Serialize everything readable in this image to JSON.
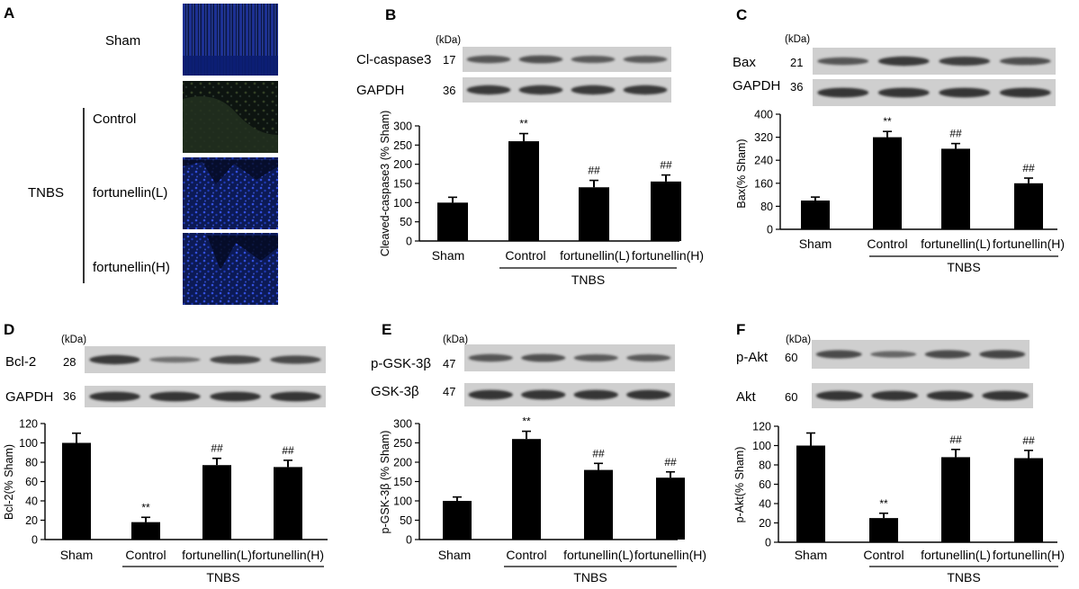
{
  "panel_a": {
    "letter": "A",
    "rows": [
      {
        "label": "Sham",
        "stain": "blue"
      },
      {
        "label": "Control",
        "stain": "dark-green"
      },
      {
        "label": "fortunellin(L)",
        "stain": "blue"
      },
      {
        "label": "fortunellin(H)",
        "stain": "blue"
      }
    ],
    "group_label": "TNBS"
  },
  "colors": {
    "bar": "#000000",
    "blot_bg": "#cfcfcf",
    "band": "#1e1e1e",
    "dapi": "#1b3cff"
  },
  "chart_data": [
    {
      "id": "B",
      "type": "bar",
      "blots": [
        {
          "protein": "Cl-caspase3",
          "kda": "17",
          "band_intensity": [
            0.55,
            0.6,
            0.5,
            0.5
          ]
        },
        {
          "protein": "GAPDH",
          "kda": "36",
          "band_intensity": [
            0.8,
            0.8,
            0.8,
            0.8
          ]
        }
      ],
      "kda_unit": "(kDa)",
      "categories": [
        "Sham",
        "Control",
        "fortunellin(L)",
        "fortunellin(H)"
      ],
      "values": [
        100,
        260,
        140,
        155
      ],
      "errors": [
        14,
        20,
        18,
        17
      ],
      "significance": [
        "",
        "**",
        "##",
        "##"
      ],
      "ylabel": "Cleaved-caspase3 (% Sham)",
      "yticks": [
        0,
        50,
        100,
        150,
        200,
        250,
        300
      ],
      "ylim": [
        0,
        300
      ],
      "group_label": "TNBS"
    },
    {
      "id": "C",
      "type": "bar",
      "blots": [
        {
          "protein": "Bax",
          "kda": "21",
          "band_intensity": [
            0.55,
            0.8,
            0.75,
            0.6
          ]
        },
        {
          "protein": "GAPDH",
          "kda": "36",
          "band_intensity": [
            0.85,
            0.85,
            0.85,
            0.85
          ]
        }
      ],
      "kda_unit": "(kDa)",
      "categories": [
        "Sham",
        "Control",
        "fortunellin(L)",
        "fortunellin(H)"
      ],
      "values": [
        100,
        320,
        280,
        160
      ],
      "errors": [
        12,
        20,
        18,
        18
      ],
      "significance": [
        "",
        "**",
        "##",
        "##"
      ],
      "ylabel": "Bax(% Sham)",
      "yticks": [
        0,
        80,
        160,
        240,
        320,
        400
      ],
      "ylim": [
        0,
        400
      ],
      "group_label": "TNBS"
    },
    {
      "id": "D",
      "type": "bar",
      "blots": [
        {
          "protein": "Bcl-2",
          "kda": "28",
          "band_intensity": [
            0.8,
            0.3,
            0.7,
            0.65
          ]
        },
        {
          "protein": "GAPDH",
          "kda": "36",
          "band_intensity": [
            0.85,
            0.85,
            0.85,
            0.85
          ]
        }
      ],
      "kda_unit": "(kDa)",
      "categories": [
        "Sham",
        "Control",
        "fortunellin(L)",
        "fortunellin(H)"
      ],
      "values": [
        100,
        18,
        77,
        75
      ],
      "errors": [
        10,
        5,
        7,
        7
      ],
      "significance": [
        "",
        "**",
        "##",
        "##"
      ],
      "ylabel": "Bcl-2(% Sham)",
      "yticks": [
        0,
        20,
        40,
        60,
        80,
        100,
        120
      ],
      "ylim": [
        0,
        120
      ],
      "group_label": "TNBS"
    },
    {
      "id": "E",
      "type": "bar",
      "blots": [
        {
          "protein": "p-GSK-3β",
          "kda": "47",
          "band_intensity": [
            0.55,
            0.6,
            0.5,
            0.5
          ]
        },
        {
          "protein": "GSK-3β",
          "kda": "47",
          "band_intensity": [
            0.85,
            0.85,
            0.85,
            0.85
          ]
        }
      ],
      "kda_unit": "(kDa)",
      "categories": [
        "Sham",
        "Control",
        "fortunellin(L)",
        "fortunellin(H)"
      ],
      "values": [
        100,
        260,
        180,
        160
      ],
      "errors": [
        10,
        20,
        17,
        15
      ],
      "significance": [
        "",
        "**",
        "##",
        "##"
      ],
      "ylabel": "p-GSK-3β (% Sham)",
      "yticks": [
        0,
        50,
        100,
        150,
        200,
        250,
        300
      ],
      "ylim": [
        0,
        300
      ],
      "group_label": "TNBS"
    },
    {
      "id": "F",
      "type": "bar",
      "blots": [
        {
          "protein": "p-Akt",
          "kda": "60",
          "band_intensity": [
            0.65,
            0.4,
            0.65,
            0.7
          ]
        },
        {
          "protein": "Akt",
          "kda": "60",
          "band_intensity": [
            0.85,
            0.85,
            0.85,
            0.85
          ]
        }
      ],
      "kda_unit": "(kDa)",
      "categories": [
        "Sham",
        "Control",
        "fortunellin(L)",
        "fortunellin(H)"
      ],
      "values": [
        100,
        25,
        88,
        87
      ],
      "errors": [
        13,
        5,
        8,
        8
      ],
      "significance": [
        "",
        "**",
        "##",
        "##"
      ],
      "ylabel": "p-Akt(% Sham)",
      "yticks": [
        0,
        20,
        40,
        60,
        80,
        100,
        120
      ],
      "ylim": [
        0,
        120
      ],
      "group_label": "TNBS"
    }
  ]
}
